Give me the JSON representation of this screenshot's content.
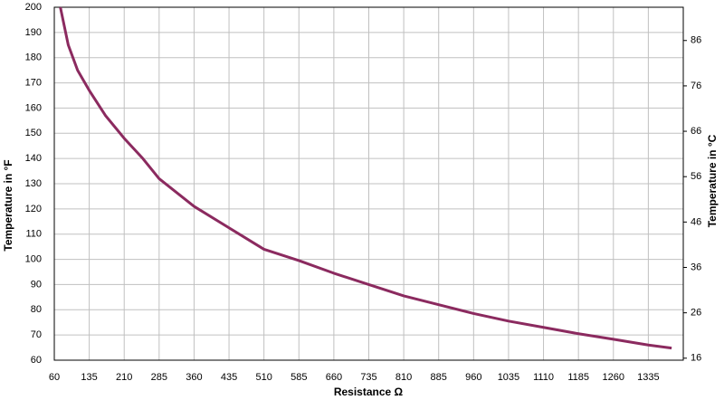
{
  "chart_data": {
    "type": "line",
    "x_label": "Resistance  Ω",
    "y_label": "Temperature in °F",
    "y2_label": "Temperature in °C",
    "x": [
      73,
      90,
      110,
      135,
      170,
      210,
      250,
      285,
      360,
      435,
      510,
      585,
      660,
      735,
      810,
      885,
      960,
      1035,
      1110,
      1185,
      1260,
      1335,
      1385
    ],
    "series": [
      {
        "color": "#8b2a5f",
        "values": [
          200,
          185,
          175,
          167,
          157,
          148,
          140,
          132,
          121,
          112.5,
          104,
          99.5,
          94.5,
          90,
          85.5,
          82,
          78.5,
          75.5,
          73,
          70.5,
          68.3,
          66,
          64.8
        ]
      }
    ],
    "xlim": [
      60,
      1410
    ],
    "xticks": [
      60,
      135,
      210,
      285,
      360,
      435,
      510,
      585,
      660,
      735,
      810,
      885,
      960,
      1035,
      1110,
      1185,
      1260,
      1335
    ],
    "ylim": [
      60,
      200
    ],
    "yticks": [
      60,
      70,
      80,
      90,
      100,
      110,
      120,
      130,
      140,
      150,
      160,
      170,
      180,
      190,
      200
    ],
    "y2lim": [
      15.56,
      93.33
    ],
    "y2ticks": [
      16,
      26,
      36,
      46,
      56,
      66,
      76,
      86
    ],
    "grid": true
  }
}
